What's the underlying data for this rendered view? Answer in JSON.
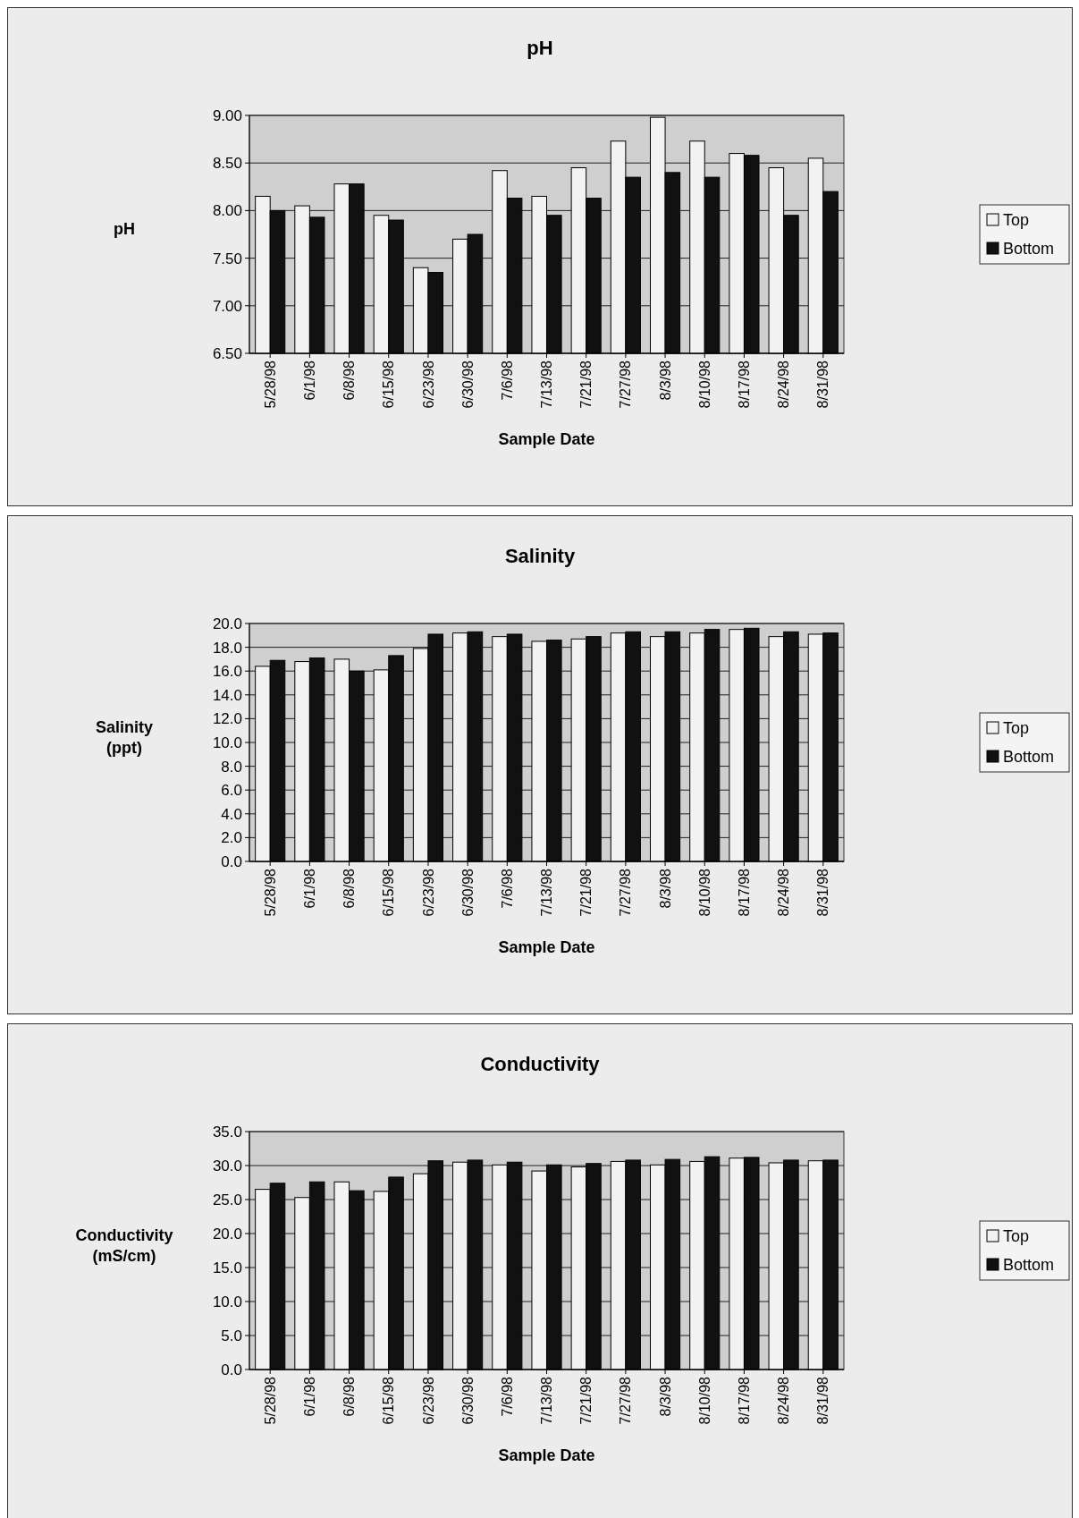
{
  "chart_data": [
    {
      "type": "bar",
      "title": "pH",
      "xlabel": "Sample Date",
      "ylabel": "pH",
      "categories": [
        "5/28/98",
        "6/1/98",
        "6/8/98",
        "6/15/98",
        "6/23/98",
        "6/30/98",
        "7/6/98",
        "7/13/98",
        "7/21/98",
        "7/27/98",
        "8/3/98",
        "8/10/98",
        "8/17/98",
        "8/24/98",
        "8/31/98"
      ],
      "series": [
        {
          "name": "Top",
          "color": "#f2f2f2",
          "values": [
            8.15,
            8.05,
            8.28,
            7.95,
            7.4,
            7.7,
            8.42,
            8.15,
            8.45,
            8.73,
            8.98,
            8.73,
            8.6,
            8.45,
            8.55
          ]
        },
        {
          "name": "Bottom",
          "color": "#111111",
          "values": [
            8.0,
            7.93,
            8.28,
            7.9,
            7.35,
            7.75,
            8.13,
            7.95,
            8.13,
            8.35,
            8.4,
            8.35,
            8.58,
            7.95,
            8.2
          ]
        }
      ],
      "ylim": [
        6.5,
        9
      ],
      "yticks": [
        {
          "value": 6.5,
          "label": "6.50"
        },
        {
          "value": 7,
          "label": "7.00"
        },
        {
          "value": 7.5,
          "label": "7.50"
        },
        {
          "value": 8,
          "label": "8.00"
        },
        {
          "value": 8.5,
          "label": "8.50"
        },
        {
          "value": 9,
          "label": "9.00"
        }
      ],
      "grid": "y",
      "legend": "right"
    },
    {
      "type": "bar",
      "title": "Salinity",
      "xlabel": "Sample Date",
      "ylabel": "Salinity (ppt)",
      "categories": [
        "5/28/98",
        "6/1/98",
        "6/8/98",
        "6/15/98",
        "6/23/98",
        "6/30/98",
        "7/6/98",
        "7/13/98",
        "7/21/98",
        "7/27/98",
        "8/3/98",
        "8/10/98",
        "8/17/98",
        "8/24/98",
        "8/31/98"
      ],
      "series": [
        {
          "name": "Top",
          "color": "#f2f2f2",
          "values": [
            16.4,
            16.8,
            17.0,
            16.1,
            17.9,
            19.2,
            18.9,
            18.5,
            18.7,
            19.2,
            18.9,
            19.2,
            19.5,
            18.9,
            19.1
          ]
        },
        {
          "name": "Bottom",
          "color": "#111111",
          "values": [
            16.9,
            17.1,
            16.0,
            17.3,
            19.1,
            19.3,
            19.1,
            18.6,
            18.9,
            19.3,
            19.3,
            19.5,
            19.6,
            19.3,
            19.2
          ]
        }
      ],
      "ylim": [
        0,
        20
      ],
      "yticks": [
        {
          "value": 0,
          "label": "0.0"
        },
        {
          "value": 2,
          "label": "2.0"
        },
        {
          "value": 4,
          "label": "4.0"
        },
        {
          "value": 6,
          "label": "6.0"
        },
        {
          "value": 8,
          "label": "8.0"
        },
        {
          "value": 10,
          "label": "10.0"
        },
        {
          "value": 12,
          "label": "12.0"
        },
        {
          "value": 14,
          "label": "14.0"
        },
        {
          "value": 16,
          "label": "16.0"
        },
        {
          "value": 18,
          "label": "18.0"
        },
        {
          "value": 20,
          "label": "20.0"
        }
      ],
      "grid": "y",
      "legend": "right"
    },
    {
      "type": "bar",
      "title": "Conductivity",
      "xlabel": "Sample  Date",
      "ylabel": "Conductivity (mS/cm)",
      "categories": [
        "5/28/98",
        "6/1/98",
        "6/8/98",
        "6/15/98",
        "6/23/98",
        "6/30/98",
        "7/6/98",
        "7/13/98",
        "7/21/98",
        "7/27/98",
        "8/3/98",
        "8/10/98",
        "8/17/98",
        "8/24/98",
        "8/31/98"
      ],
      "series": [
        {
          "name": "Top",
          "color": "#f2f2f2",
          "values": [
            26.5,
            25.3,
            27.6,
            26.2,
            28.8,
            30.5,
            30.1,
            29.2,
            29.8,
            30.6,
            30.1,
            30.6,
            31.1,
            30.4,
            30.7
          ]
        },
        {
          "name": "Bottom",
          "color": "#111111",
          "values": [
            27.4,
            27.6,
            26.3,
            28.3,
            30.7,
            30.8,
            30.5,
            30.1,
            30.3,
            30.8,
            30.9,
            31.3,
            31.2,
            30.8,
            30.8
          ]
        }
      ],
      "ylim": [
        0,
        35
      ],
      "yticks": [
        {
          "value": 0,
          "label": "0.0"
        },
        {
          "value": 5,
          "label": "5.0"
        },
        {
          "value": 10,
          "label": "10.0"
        },
        {
          "value": 15,
          "label": "15.0"
        },
        {
          "value": 20,
          "label": "20.0"
        },
        {
          "value": 25,
          "label": "25.0"
        },
        {
          "value": 30,
          "label": "30.0"
        },
        {
          "value": 35,
          "label": "35.0"
        }
      ],
      "grid": "y",
      "legend": "right"
    }
  ]
}
